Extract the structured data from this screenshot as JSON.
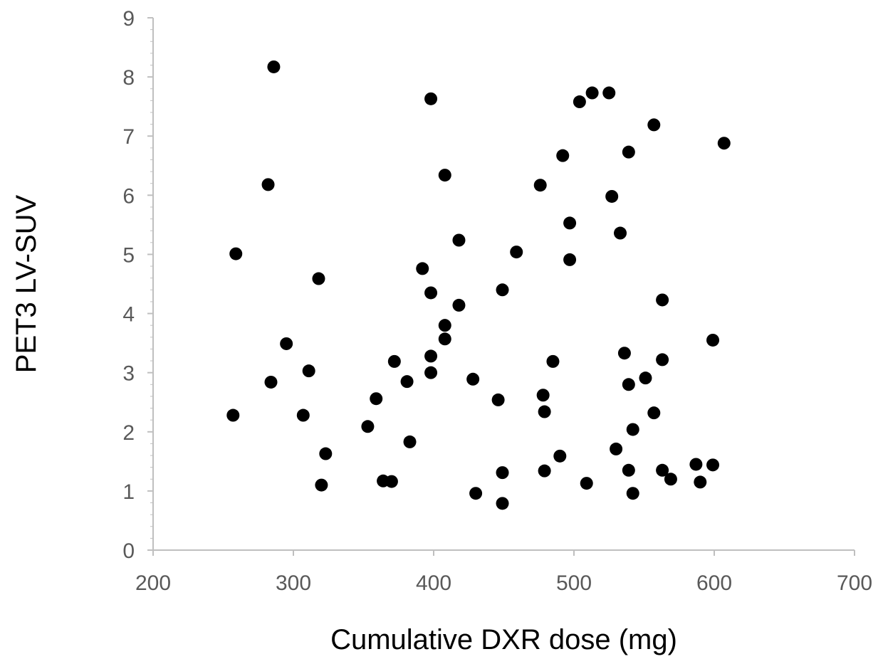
{
  "chart_data": {
    "type": "scatter",
    "title": "",
    "xlabel": "Cumulative DXR dose (mg)",
    "ylabel": "PET3 LV-SUV",
    "xlim": [
      200,
      700
    ],
    "ylim": [
      0,
      9
    ],
    "xticks": [
      "200",
      "300",
      "400",
      "500",
      "600",
      "700"
    ],
    "yticks": [
      "0",
      "1",
      "2",
      "3",
      "4",
      "5",
      "6",
      "7",
      "8",
      "9"
    ],
    "grid": false,
    "legend": "none",
    "marker_color": "#000000",
    "series": [
      {
        "points": [
          [
            257,
            2.28
          ],
          [
            259,
            5.01
          ],
          [
            282,
            6.18
          ],
          [
            284,
            2.84
          ],
          [
            286,
            8.17
          ],
          [
            295,
            3.49
          ],
          [
            307,
            2.28
          ],
          [
            311,
            3.03
          ],
          [
            318,
            4.59
          ],
          [
            320,
            1.1
          ],
          [
            323,
            1.63
          ],
          [
            353,
            2.09
          ],
          [
            359,
            2.56
          ],
          [
            364,
            1.17
          ],
          [
            370,
            1.16
          ],
          [
            372,
            3.19
          ],
          [
            381,
            2.85
          ],
          [
            383,
            1.83
          ],
          [
            392,
            4.76
          ],
          [
            398,
            7.63
          ],
          [
            398,
            4.35
          ],
          [
            398,
            3.28
          ],
          [
            398,
            3.0
          ],
          [
            408,
            6.34
          ],
          [
            408,
            3.8
          ],
          [
            408,
            3.57
          ],
          [
            418,
            5.24
          ],
          [
            418,
            4.14
          ],
          [
            428,
            2.89
          ],
          [
            430,
            0.96
          ],
          [
            446,
            2.54
          ],
          [
            449,
            1.31
          ],
          [
            449,
            4.4
          ],
          [
            449,
            0.79
          ],
          [
            459,
            5.04
          ],
          [
            476,
            6.17
          ],
          [
            478,
            2.62
          ],
          [
            479,
            2.34
          ],
          [
            479,
            1.34
          ],
          [
            485,
            3.19
          ],
          [
            490,
            1.59
          ],
          [
            492,
            6.67
          ],
          [
            497,
            5.53
          ],
          [
            497,
            4.91
          ],
          [
            504,
            7.58
          ],
          [
            509,
            1.13
          ],
          [
            513,
            7.73
          ],
          [
            525,
            7.73
          ],
          [
            527,
            5.98
          ],
          [
            530,
            1.71
          ],
          [
            533,
            5.36
          ],
          [
            536,
            3.33
          ],
          [
            539,
            6.73
          ],
          [
            539,
            2.8
          ],
          [
            539,
            1.35
          ],
          [
            542,
            2.04
          ],
          [
            542,
            0.96
          ],
          [
            551,
            2.91
          ],
          [
            557,
            7.19
          ],
          [
            557,
            2.32
          ],
          [
            563,
            4.23
          ],
          [
            563,
            3.22
          ],
          [
            563,
            1.35
          ],
          [
            569,
            1.2
          ],
          [
            587,
            1.45
          ],
          [
            590,
            1.15
          ],
          [
            599,
            3.55
          ],
          [
            599,
            1.44
          ],
          [
            607,
            6.88
          ]
        ]
      }
    ]
  }
}
